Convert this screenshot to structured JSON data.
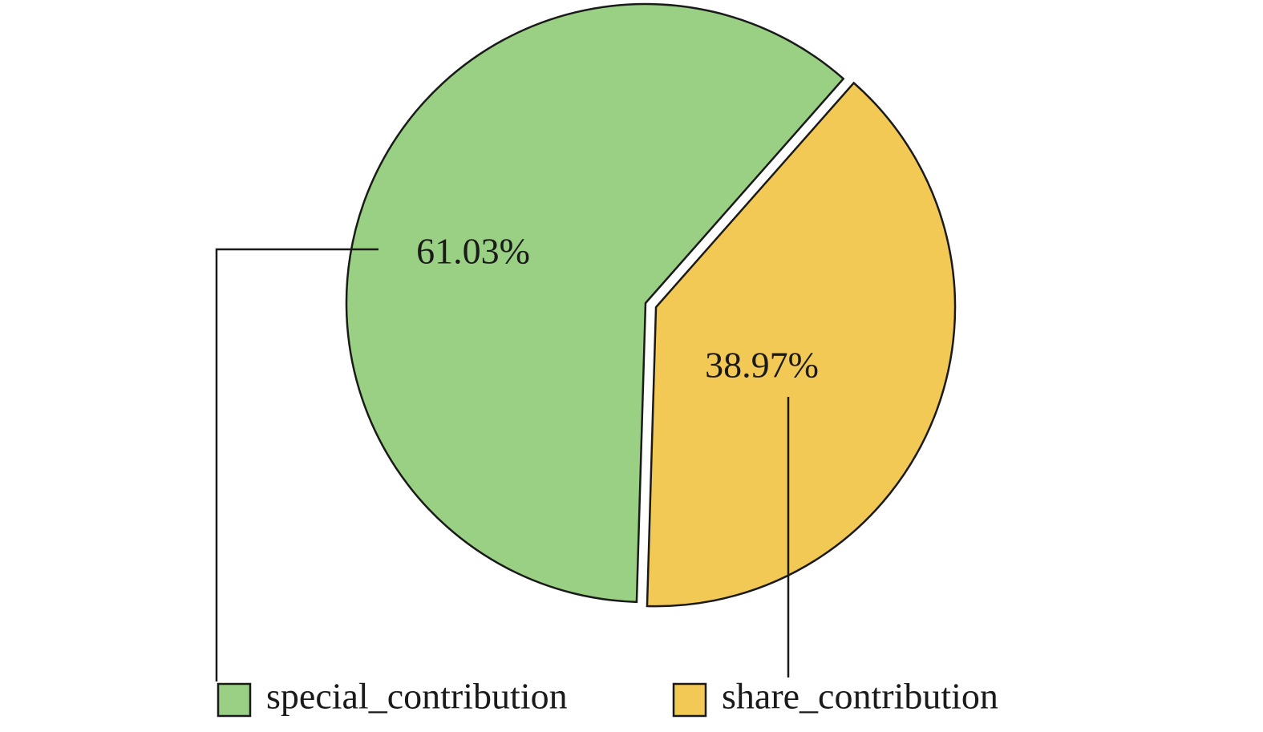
{
  "chart_data": {
    "type": "pie",
    "categories": [
      "special_contribution",
      "share_contribution"
    ],
    "values": [
      61.03,
      38.97
    ],
    "value_labels": [
      "61.03%",
      "38.97%"
    ],
    "colors": [
      "#9ad083",
      "#f2c955"
    ],
    "legend": "bottom"
  }
}
